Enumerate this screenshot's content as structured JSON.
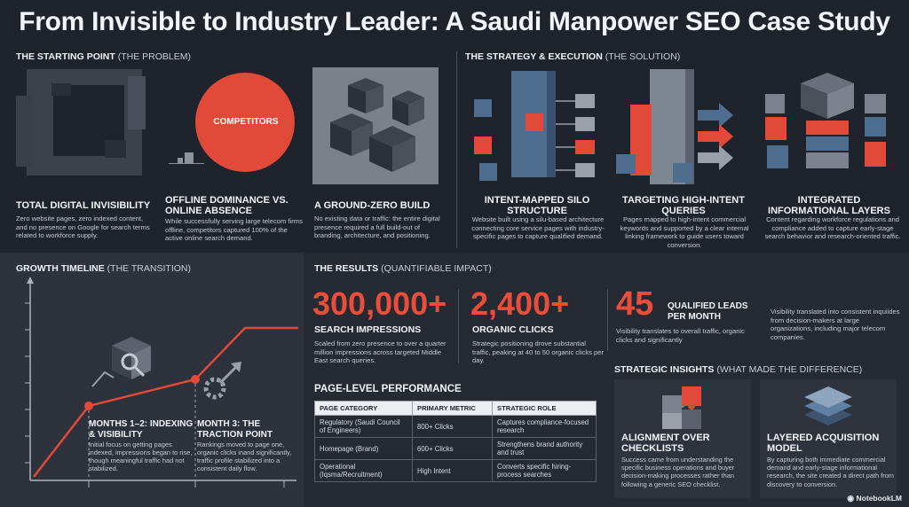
{
  "title": "From Invisible to Industry Leader: A Saudi Manpower SEO Case Study",
  "starting_point": {
    "header": "THE STARTING POINT",
    "header_note": "(THE PROBLEM)",
    "items": [
      {
        "title": "TOTAL DIGITAL INVISIBILITY",
        "body": "Zero website pages, zero indexed content, and no presence on Google for search terms related to workforce supply."
      },
      {
        "title": "OFFLINE DOMINANCE VS. ONLINE ABSENCE",
        "body": "While successfully serving large telecom firms offline, competitors captured 100% of the active online search demand.",
        "badge": "COMPETITORS"
      },
      {
        "title": "A GROUND-ZERO BUILD",
        "body": "No existing data or traffic: the entire digital presence required a full build-out of branding, architecture, and positioning."
      }
    ]
  },
  "strategy": {
    "header": "THE STRATEGY & EXECUTION",
    "header_note": "(THE SOLUTION)",
    "items": [
      {
        "title": "INTENT-MAPPED SILO STRUCTURE",
        "body": "Website built using a silu-based architecture connecting core service pages with industry-specific pages to capture qualified demand."
      },
      {
        "title": "TARGETING HIGH-INTENT QUERIES",
        "body": "Pages mapped to high-intent commercial keywords and supported by a clear internal linking framework to guide users toward conversion."
      },
      {
        "title": "INTEGRATED INFORMATIONAL LAYERS",
        "body": "Content regarding workforce regulations and compliance added to capture early-stage search behavior and research-oriented traffic."
      }
    ]
  },
  "growth": {
    "header": "GROWTH TIMELINE",
    "header_note": "(THE TRANSITION)",
    "milestones": [
      {
        "title": "MONTHS 1–2: INDEXING & VISIBILITY",
        "body": "Initial focus on getting pages indexed, impressions began to rise, though meaningful traffic had not stabilized."
      },
      {
        "title": "MONTH 3: THE TRACTION POINT",
        "body": "Rankings moved to page one, organic clicks inand significantly, traffic profile stabilized into a consistent daily flow."
      }
    ]
  },
  "results": {
    "header": "THE RESULTS",
    "header_note": "(QUANTIFIABLE IMPACT)",
    "metrics": [
      {
        "value": "300,000+",
        "label": "SEARCH IMPRESSIONS",
        "body": "Scaled from zero presence to over a quarter million impressions across targeted Middle East search queries."
      },
      {
        "value": "2,400+",
        "label": "ORGANIC CLICKS",
        "body": "Strategic positioning drove substantial traffic, peaking at 40 to 50 organic clicks per day."
      },
      {
        "value": "45",
        "label": "QUALIFIED LEADS PER MONTH",
        "body": "Visibility translates to overall traffic, organic clicks and significantly",
        "body2": "Visibility translated into consistent inquiides from decision-makers at large organizations, including major telecom companies."
      }
    ]
  },
  "page_level": {
    "header": "PAGE-LEVEL PERFORMANCE",
    "columns": [
      "PAGE CATEGORY",
      "PRIMARY METRIC",
      "STRATEGIC ROLE"
    ],
    "rows": [
      [
        "Regulatory (Saudi Council of Engineers)",
        "800+ Clicks",
        "Captures compliance-focused research"
      ],
      [
        "Homepage (Brand)",
        "600+ Clicks",
        "Strengthens brand authority and trust"
      ],
      [
        "Operational (Iqsma/Recruitment)",
        "High Intent",
        "Converts specific hiring-process searches"
      ]
    ]
  },
  "insights": {
    "header": "STRATEGIC INSIGHTS",
    "header_note": "(WHAT MADE THE DIFFERENCE)",
    "cards": [
      {
        "title": "ALIGNMENT OVER CHECKLISTS",
        "body": "Success came from understanding the specific business operations and buyer decision-making processes rather than following a generic SEO checklist."
      },
      {
        "title": "LAYERED ACQUISITION MODEL",
        "body": "By capturing both immediate commercial demand and early-stage informational research, the site created a direct path from discovery to conversion."
      }
    ]
  },
  "brand": "NotebookLM",
  "colors": {
    "accent": "#ea4e3b",
    "steel": "#4f6d8f",
    "bg": "#1f232c"
  }
}
